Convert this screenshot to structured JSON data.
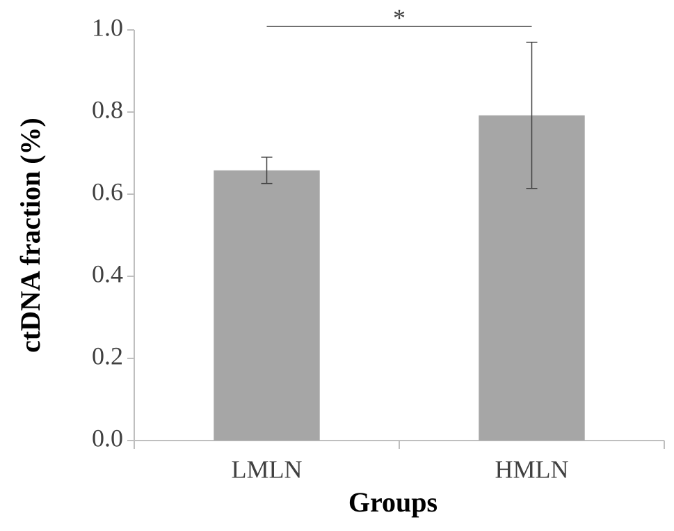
{
  "chart_data": {
    "type": "bar",
    "categories": [
      "LMLN",
      "HMLN"
    ],
    "values": [
      0.658,
      0.792
    ],
    "errors": [
      0.032,
      0.178
    ],
    "color": "#a6a6a6",
    "ylim": [
      0,
      1
    ],
    "yticks": [
      {
        "value": 0,
        "label": "0.0"
      },
      0.2,
      0.4,
      0.6,
      0.8,
      {
        "value": 1,
        "label": "1.0"
      }
    ],
    "ylabel": "ctDNA fraction (%)",
    "xlabel": "Groups",
    "annotation": "*"
  }
}
